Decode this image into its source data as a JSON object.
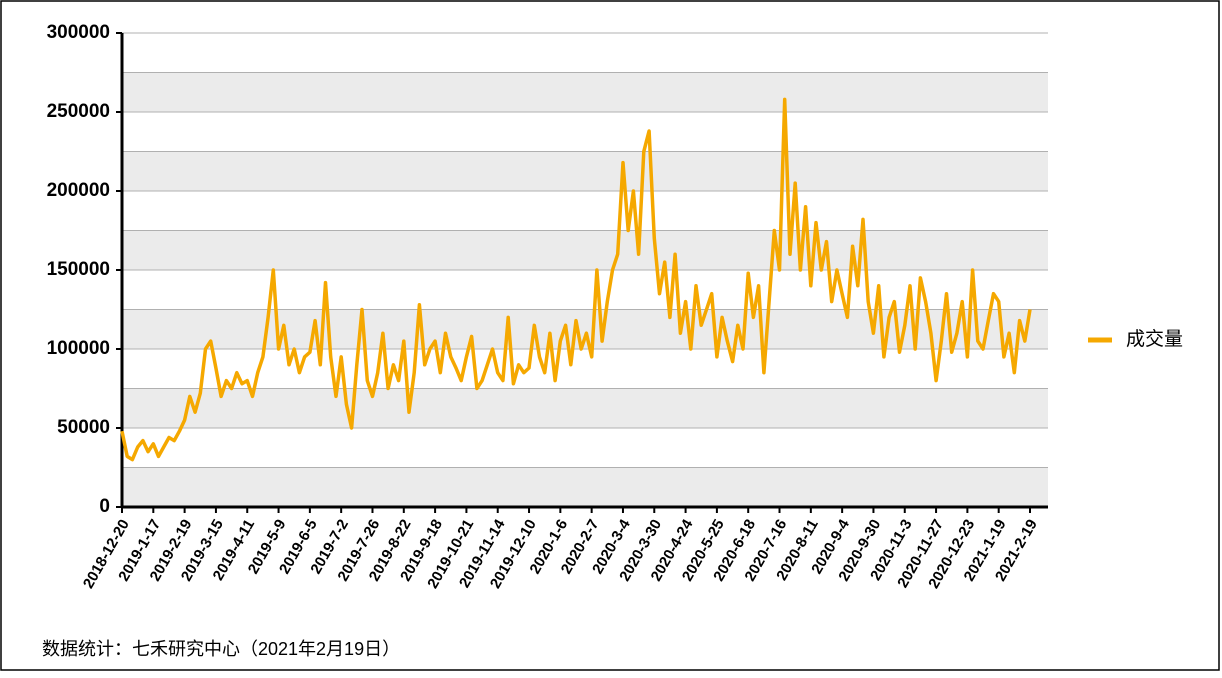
{
  "chart_data": {
    "type": "line",
    "categories": [
      "2018-12-20",
      null,
      null,
      null,
      null,
      null,
      "2019-1-17",
      null,
      null,
      null,
      null,
      null,
      "2019-2-19",
      null,
      null,
      null,
      null,
      null,
      "2019-3-15",
      null,
      null,
      null,
      null,
      null,
      "2019-4-11",
      null,
      null,
      null,
      null,
      null,
      "2019-5-9",
      null,
      null,
      null,
      null,
      null,
      "2019-6-5",
      null,
      null,
      null,
      null,
      null,
      "2019-7-2",
      null,
      null,
      null,
      null,
      null,
      "2019-7-26",
      null,
      null,
      null,
      null,
      null,
      "2019-8-22",
      null,
      null,
      null,
      null,
      null,
      "2019-9-18",
      null,
      null,
      null,
      null,
      null,
      "2019-10-21",
      null,
      null,
      null,
      null,
      null,
      "2019-11-14",
      null,
      null,
      null,
      null,
      null,
      "2019-12-10",
      null,
      null,
      null,
      null,
      null,
      "2020-1-6",
      null,
      null,
      null,
      null,
      null,
      "2020-2-7",
      null,
      null,
      null,
      null,
      null,
      "2020-3-4",
      null,
      null,
      null,
      null,
      null,
      "2020-3-30",
      null,
      null,
      null,
      null,
      null,
      "2020-4-24",
      null,
      null,
      null,
      null,
      null,
      "2020-5-25",
      null,
      null,
      null,
      null,
      null,
      "2020-6-18",
      null,
      null,
      null,
      null,
      null,
      "2020-7-16",
      null,
      null,
      null,
      null,
      null,
      "2020-8-11",
      null,
      null,
      null,
      null,
      null,
      "2020-9-4",
      null,
      null,
      null,
      null,
      null,
      "2020-9-30",
      null,
      null,
      null,
      null,
      null,
      "2020-11-3",
      null,
      null,
      null,
      null,
      null,
      "2020-11-27",
      null,
      null,
      null,
      null,
      null,
      "2020-12-23",
      null,
      null,
      null,
      null,
      null,
      "2021-1-19",
      null,
      null,
      null,
      null,
      null,
      "2021-2-19"
    ],
    "series": [
      {
        "name": "成交量",
        "color": "#f5a800",
        "values": [
          48000,
          32000,
          30000,
          38000,
          42000,
          35000,
          40000,
          32000,
          38000,
          44000,
          42000,
          48000,
          55000,
          70000,
          60000,
          72000,
          100000,
          105000,
          88000,
          70000,
          80000,
          75000,
          85000,
          78000,
          80000,
          70000,
          85000,
          95000,
          120000,
          150000,
          100000,
          115000,
          90000,
          100000,
          85000,
          95000,
          98000,
          118000,
          90000,
          142000,
          95000,
          70000,
          95000,
          65000,
          50000,
          90000,
          125000,
          80000,
          70000,
          85000,
          110000,
          75000,
          90000,
          80000,
          105000,
          60000,
          85000,
          128000,
          90000,
          100000,
          105000,
          85000,
          110000,
          95000,
          88000,
          80000,
          95000,
          108000,
          75000,
          80000,
          90000,
          100000,
          85000,
          80000,
          120000,
          78000,
          90000,
          85000,
          88000,
          115000,
          95000,
          85000,
          110000,
          80000,
          105000,
          115000,
          90000,
          118000,
          100000,
          110000,
          95000,
          150000,
          105000,
          130000,
          150000,
          160000,
          218000,
          175000,
          200000,
          160000,
          225000,
          238000,
          170000,
          135000,
          155000,
          120000,
          160000,
          110000,
          130000,
          100000,
          140000,
          115000,
          125000,
          135000,
          95000,
          120000,
          105000,
          92000,
          115000,
          100000,
          148000,
          120000,
          140000,
          85000,
          130000,
          175000,
          150000,
          258000,
          160000,
          205000,
          150000,
          190000,
          140000,
          180000,
          150000,
          168000,
          130000,
          150000,
          135000,
          120000,
          165000,
          140000,
          182000,
          130000,
          110000,
          140000,
          95000,
          120000,
          130000,
          98000,
          115000,
          140000,
          100000,
          145000,
          130000,
          110000,
          80000,
          105000,
          135000,
          98000,
          110000,
          130000,
          95000,
          150000,
          105000,
          100000,
          118000,
          135000,
          130000,
          95000,
          110000,
          85000,
          118000,
          105000,
          125000
        ]
      }
    ],
    "ylim": [
      0,
      300000
    ],
    "yticks": [
      0,
      50000,
      100000,
      150000,
      200000,
      250000,
      300000
    ],
    "grid": true,
    "legend": "right",
    "source": "数据统计：七禾研究中心（2021年2月19日）"
  }
}
